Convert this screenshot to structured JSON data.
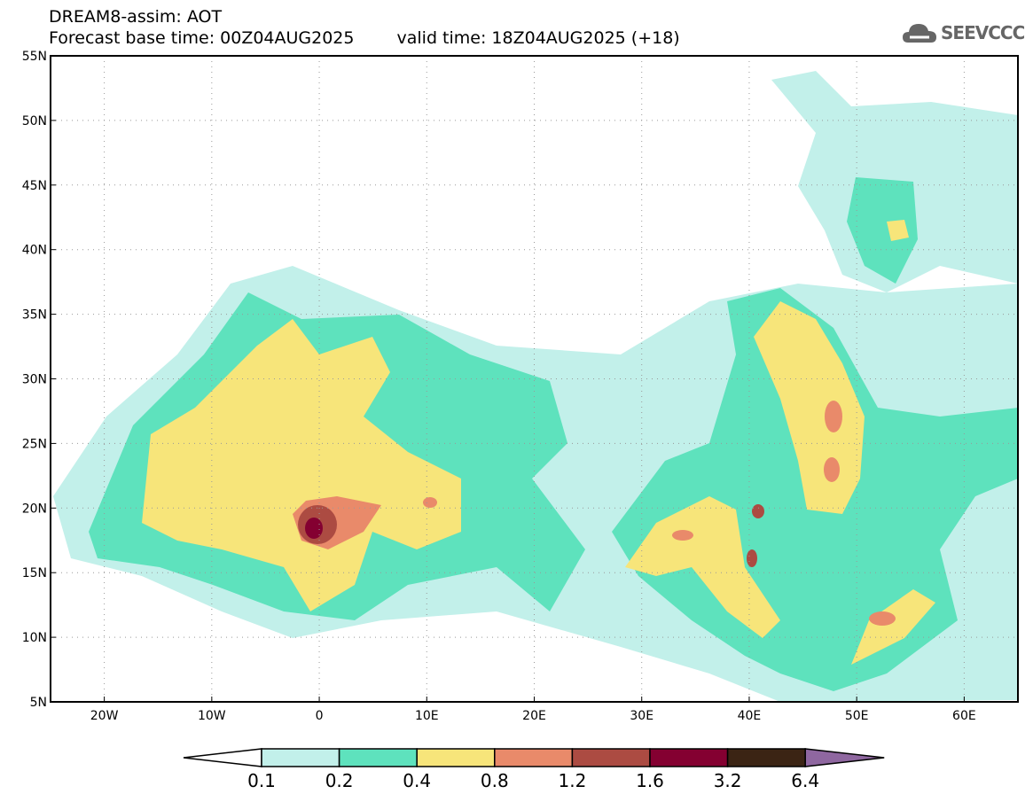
{
  "header": {
    "title": "DREAM8-assim: AOT",
    "subtitle_base": "Forecast base time: 00Z04AUG2025",
    "subtitle_valid": "valid time: 18Z04AUG2025 (+18)"
  },
  "logo": {
    "text": "SEEVCCC",
    "icon": "cloud-icon"
  },
  "map": {
    "lon_range": [
      -25,
      65
    ],
    "lat_range": [
      5,
      55
    ],
    "lon_ticks": [
      {
        "v": -20,
        "label": "20W"
      },
      {
        "v": -10,
        "label": "10W"
      },
      {
        "v": 0,
        "label": "0"
      },
      {
        "v": 10,
        "label": "10E"
      },
      {
        "v": 20,
        "label": "20E"
      },
      {
        "v": 30,
        "label": "30E"
      },
      {
        "v": 40,
        "label": "40E"
      },
      {
        "v": 50,
        "label": "50E"
      },
      {
        "v": 60,
        "label": "60E"
      }
    ],
    "lat_ticks": [
      {
        "v": 55,
        "label": "55N"
      },
      {
        "v": 50,
        "label": "50N"
      },
      {
        "v": 45,
        "label": "45N"
      },
      {
        "v": 40,
        "label": "40N"
      },
      {
        "v": 35,
        "label": "35N"
      },
      {
        "v": 30,
        "label": "30N"
      },
      {
        "v": 25,
        "label": "25N"
      },
      {
        "v": 20,
        "label": "20N"
      },
      {
        "v": 15,
        "label": "15N"
      },
      {
        "v": 10,
        "label": "10N"
      },
      {
        "v": 5,
        "label": "5N"
      }
    ]
  },
  "colorbar": {
    "levels": [
      "0.1",
      "0.2",
      "0.4",
      "0.8",
      "1.2",
      "1.6",
      "3.2",
      "6.4"
    ],
    "colors": [
      "#ffffff",
      "#c2f0ea",
      "#5ee2bd",
      "#f7e57a",
      "#e98a6a",
      "#ac4b42",
      "#840031",
      "#3b2414",
      "#8f67a0"
    ]
  }
}
